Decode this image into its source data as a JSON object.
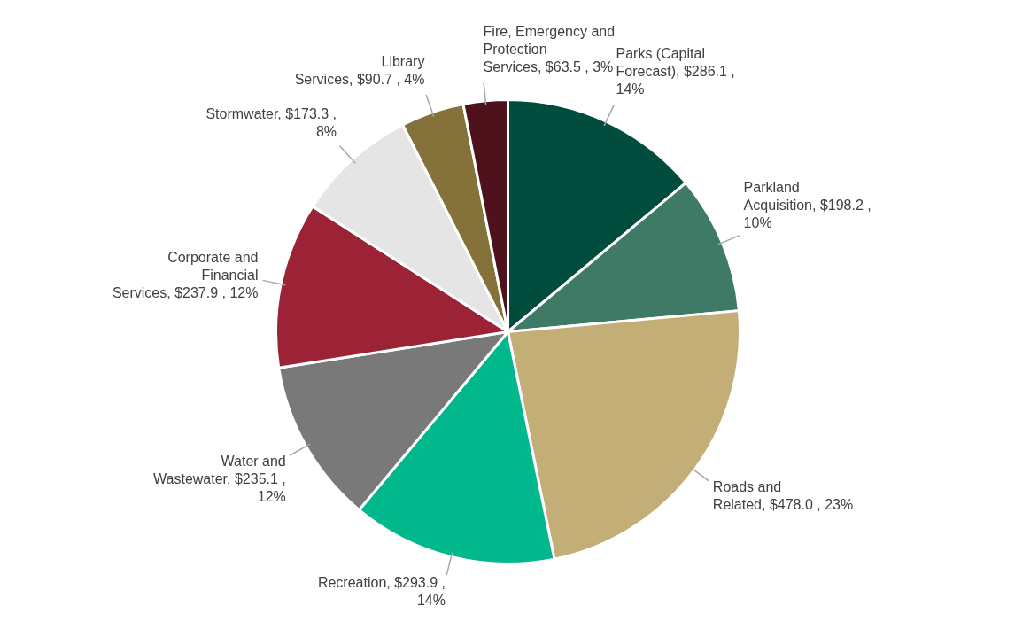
{
  "chart_data": {
    "type": "pie",
    "categories": [
      "Parks (Capital Forecast)",
      "Parkland Acquisition",
      "Roads and Related",
      "Recreation",
      "Water and Wastewater",
      "Corporate and Financial Services",
      "Stormwater",
      "Library Services",
      "Fire, Emergency and Protection Services"
    ],
    "values": [
      286.1,
      198.2,
      478.0,
      293.9,
      235.1,
      237.9,
      173.3,
      90.7,
      63.5
    ],
    "value_labels": [
      "$286.1 , 14%",
      "$198.2 , 10%",
      "$478.0 , 23%",
      "$293.9 , 14%",
      "$235.1 , 12%",
      "$237.9 , 12%",
      "$173.3 , 8%",
      "$90.7 , 4%",
      "$63.5 , 3%"
    ],
    "colors": [
      "#004d3d",
      "#3f7a66",
      "#c4ae77",
      "#00b88c",
      "#797979",
      "#9c2236",
      "#e5e5e5",
      "#85723a",
      "#4d121c"
    ]
  }
}
